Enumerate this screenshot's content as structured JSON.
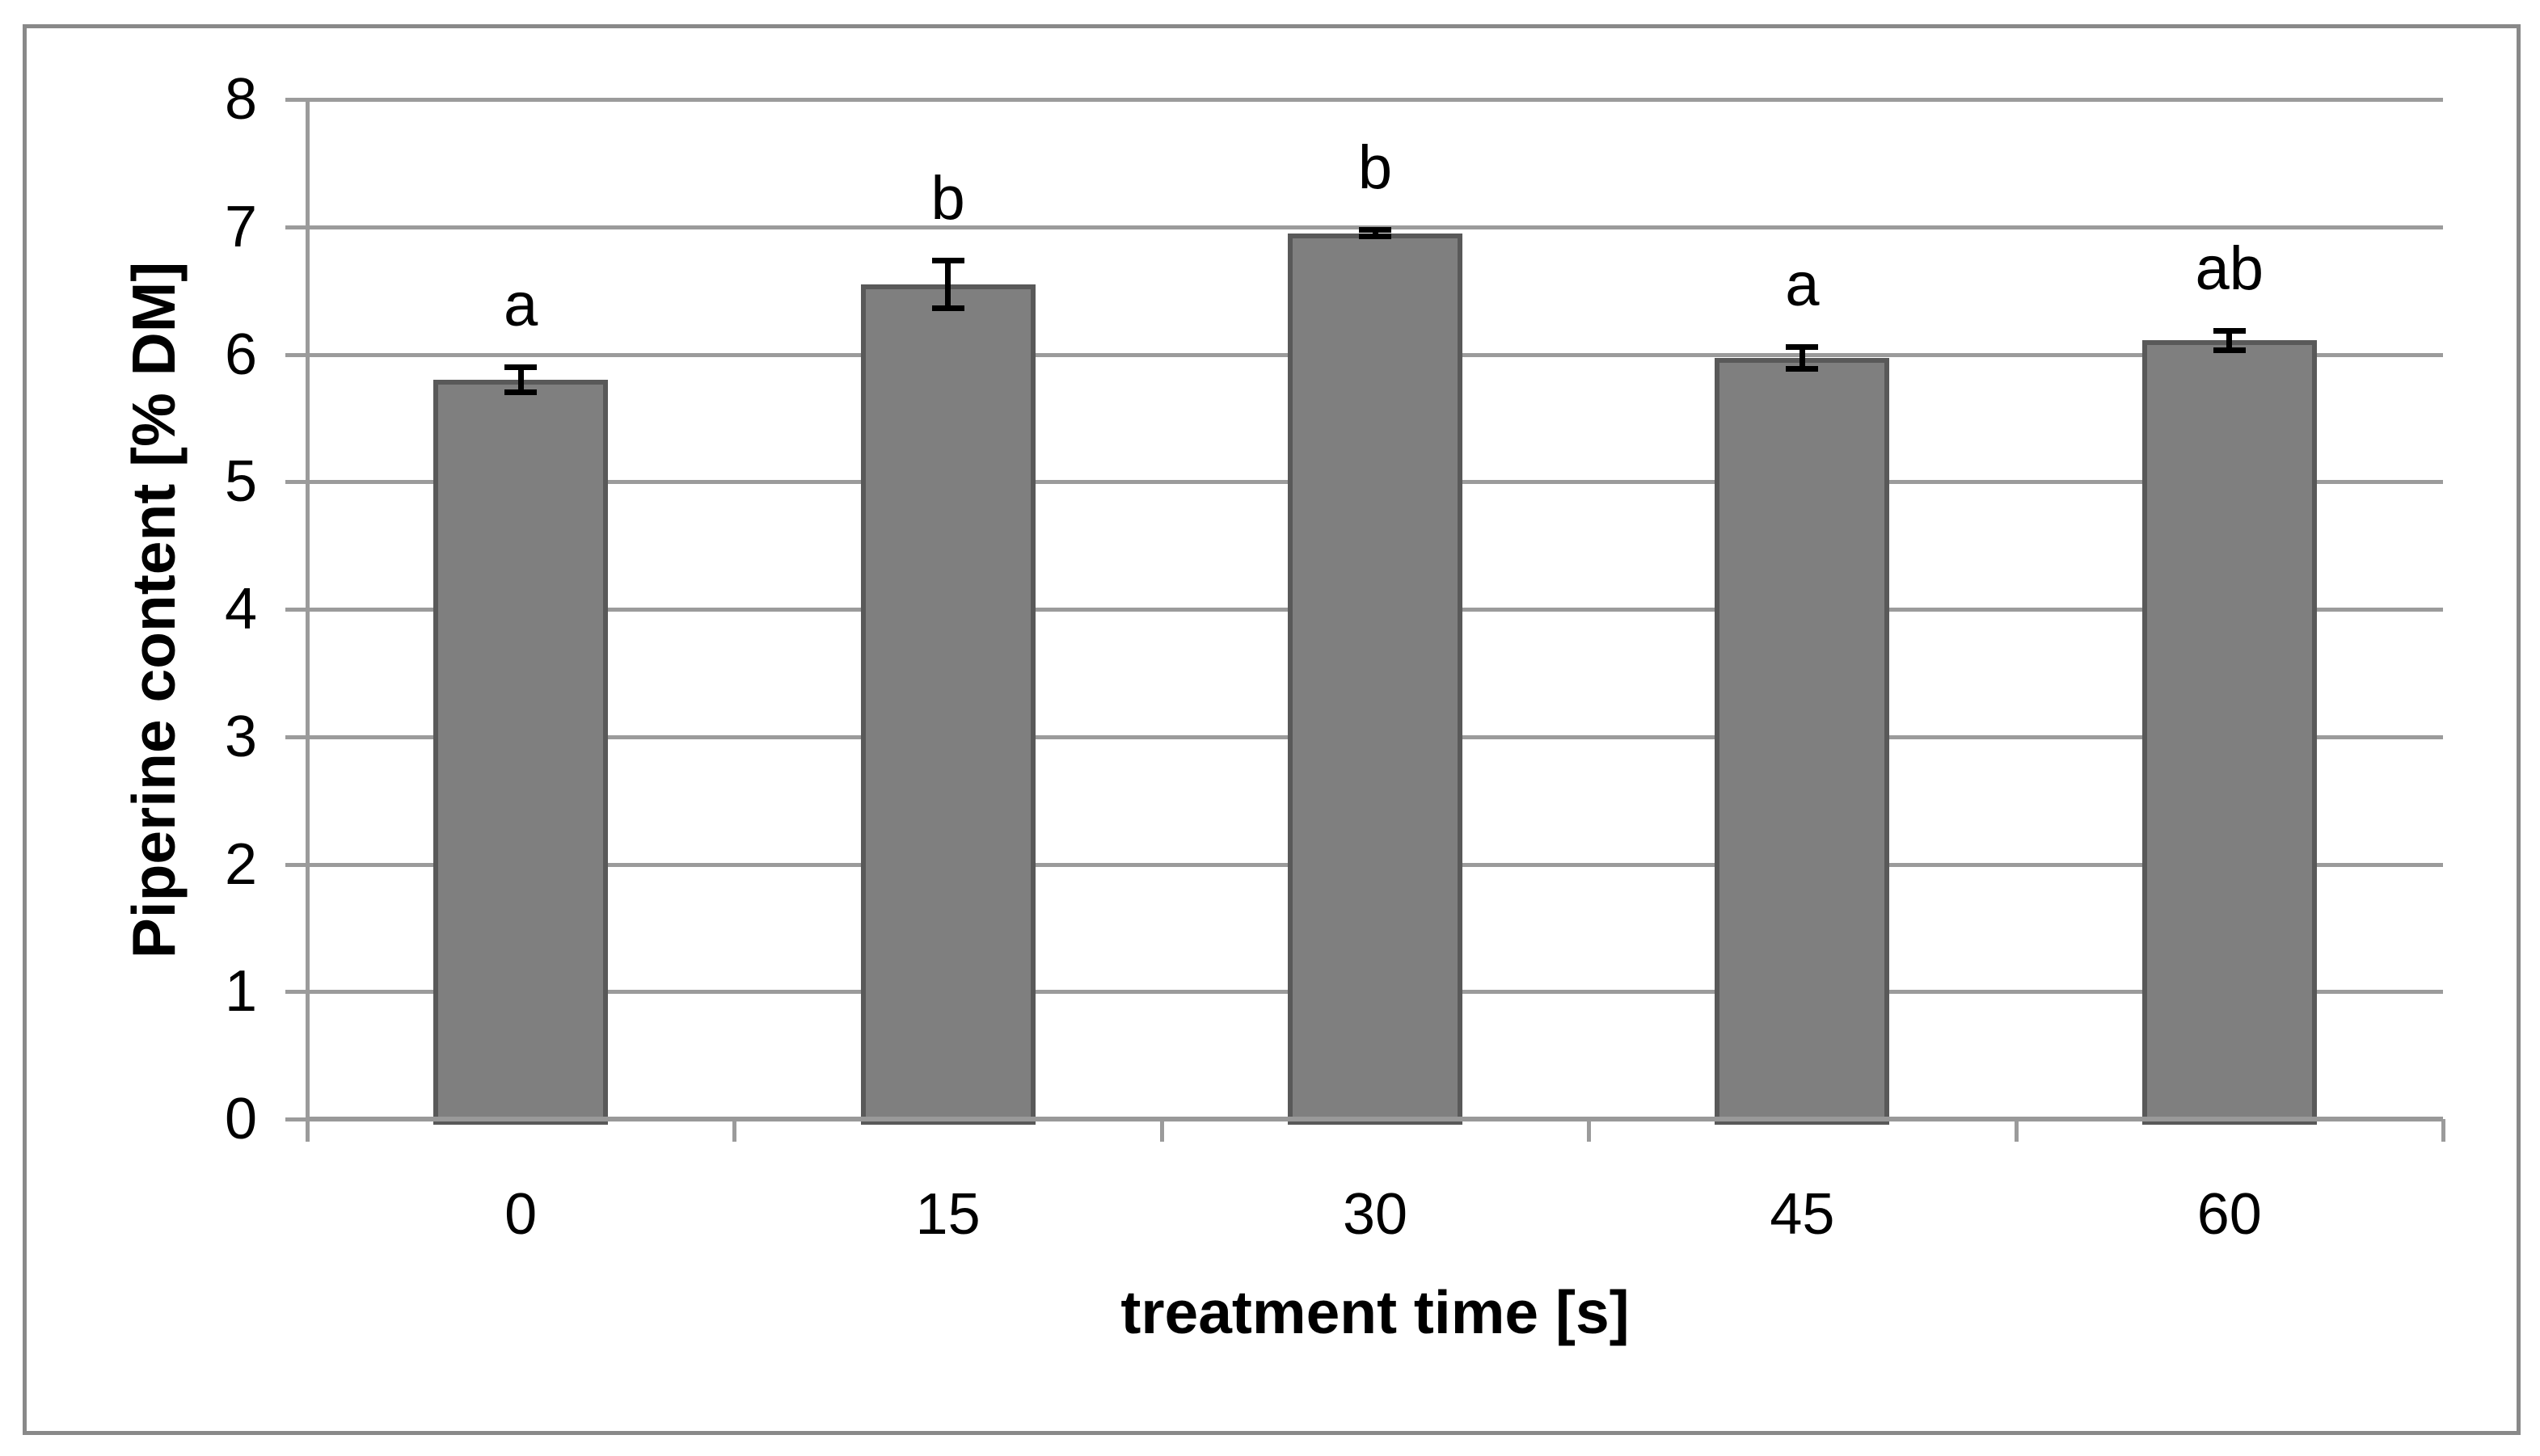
{
  "figure": {
    "type": "bar-chart-figure",
    "background": "#ffffff",
    "border_color": "#898989"
  },
  "chart_data": {
    "type": "bar",
    "title": "",
    "categories": [
      "0",
      "15",
      "30",
      "45",
      "60"
    ],
    "values": [
      5.8,
      6.55,
      6.95,
      5.97,
      6.11
    ],
    "error_bars": [
      0.1,
      0.19,
      0.03,
      0.09,
      0.08
    ],
    "significance_letters": [
      "a",
      "b",
      "b",
      "a",
      "ab"
    ],
    "xlabel": "treatment time [s]",
    "ylabel": "Piperine content [% DM]",
    "ylim": [
      0,
      8
    ],
    "yticks": [
      "0",
      "1",
      "2",
      "3",
      "4",
      "5",
      "6",
      "7",
      "8"
    ],
    "grid": "horizontal-only",
    "legend": "none",
    "colors": {
      "bar_fill": "#7f7f7f",
      "bar_border": "#595959",
      "gridline": "#9b9b9b",
      "axis_line": "#999999",
      "error_bar": "#000000",
      "text": "#000000"
    }
  }
}
